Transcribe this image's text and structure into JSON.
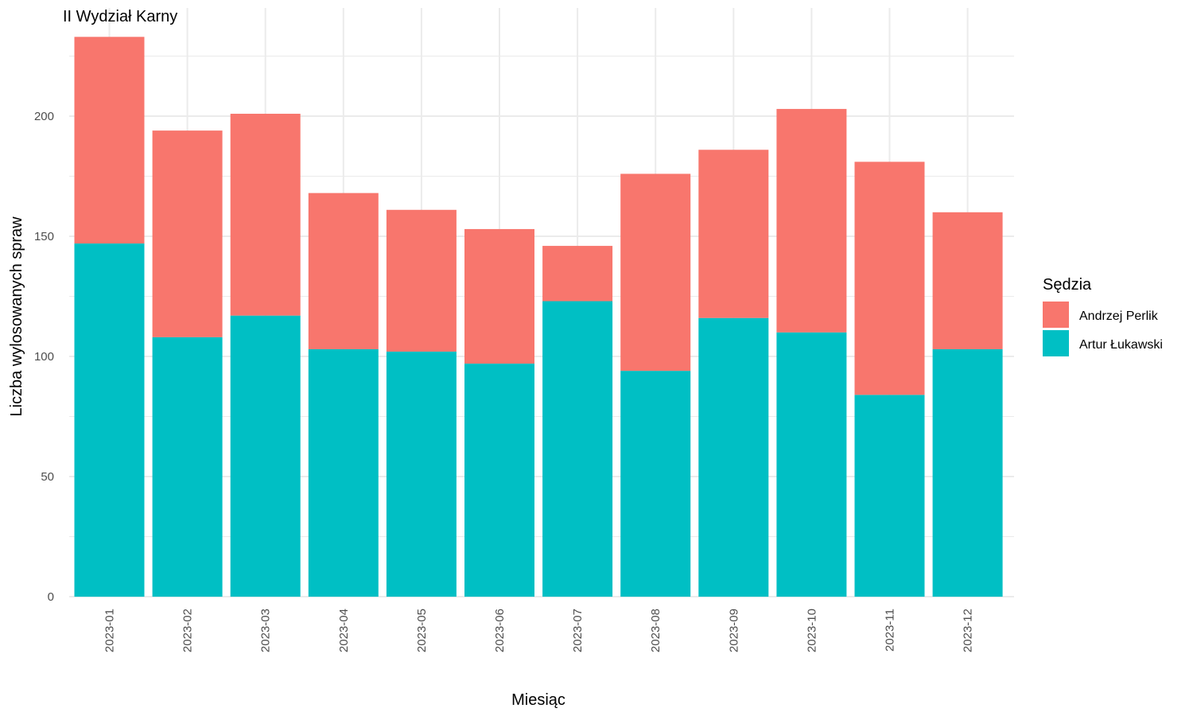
{
  "chart_data": {
    "type": "bar",
    "stacked": true,
    "title": "II Wydział Karny",
    "xlabel": "Miesiąc",
    "ylabel": "Liczba wylosowanych spraw",
    "categories": [
      "2023-01",
      "2023-02",
      "2023-03",
      "2023-04",
      "2023-05",
      "2023-06",
      "2023-07",
      "2023-08",
      "2023-09",
      "2023-10",
      "2023-11",
      "2023-12"
    ],
    "series": [
      {
        "name": "Artur Łukawski",
        "color": "#00BFC4",
        "values": [
          147,
          108,
          117,
          103,
          102,
          97,
          123,
          94,
          116,
          110,
          84,
          103
        ]
      },
      {
        "name": "Andrzej Perlik",
        "color": "#F8766D",
        "values": [
          86,
          86,
          84,
          65,
          59,
          56,
          23,
          82,
          70,
          93,
          97,
          57
        ]
      }
    ],
    "ylim": [
      0,
      233
    ],
    "yticks": [
      0,
      50,
      100,
      150,
      200
    ],
    "grid": true,
    "legend": {
      "title": "Sędzia",
      "position": "right",
      "entries": [
        {
          "label": "Andrzej Perlik",
          "color": "#F8766D"
        },
        {
          "label": "Artur Łukawski",
          "color": "#00BFC4"
        }
      ]
    }
  }
}
